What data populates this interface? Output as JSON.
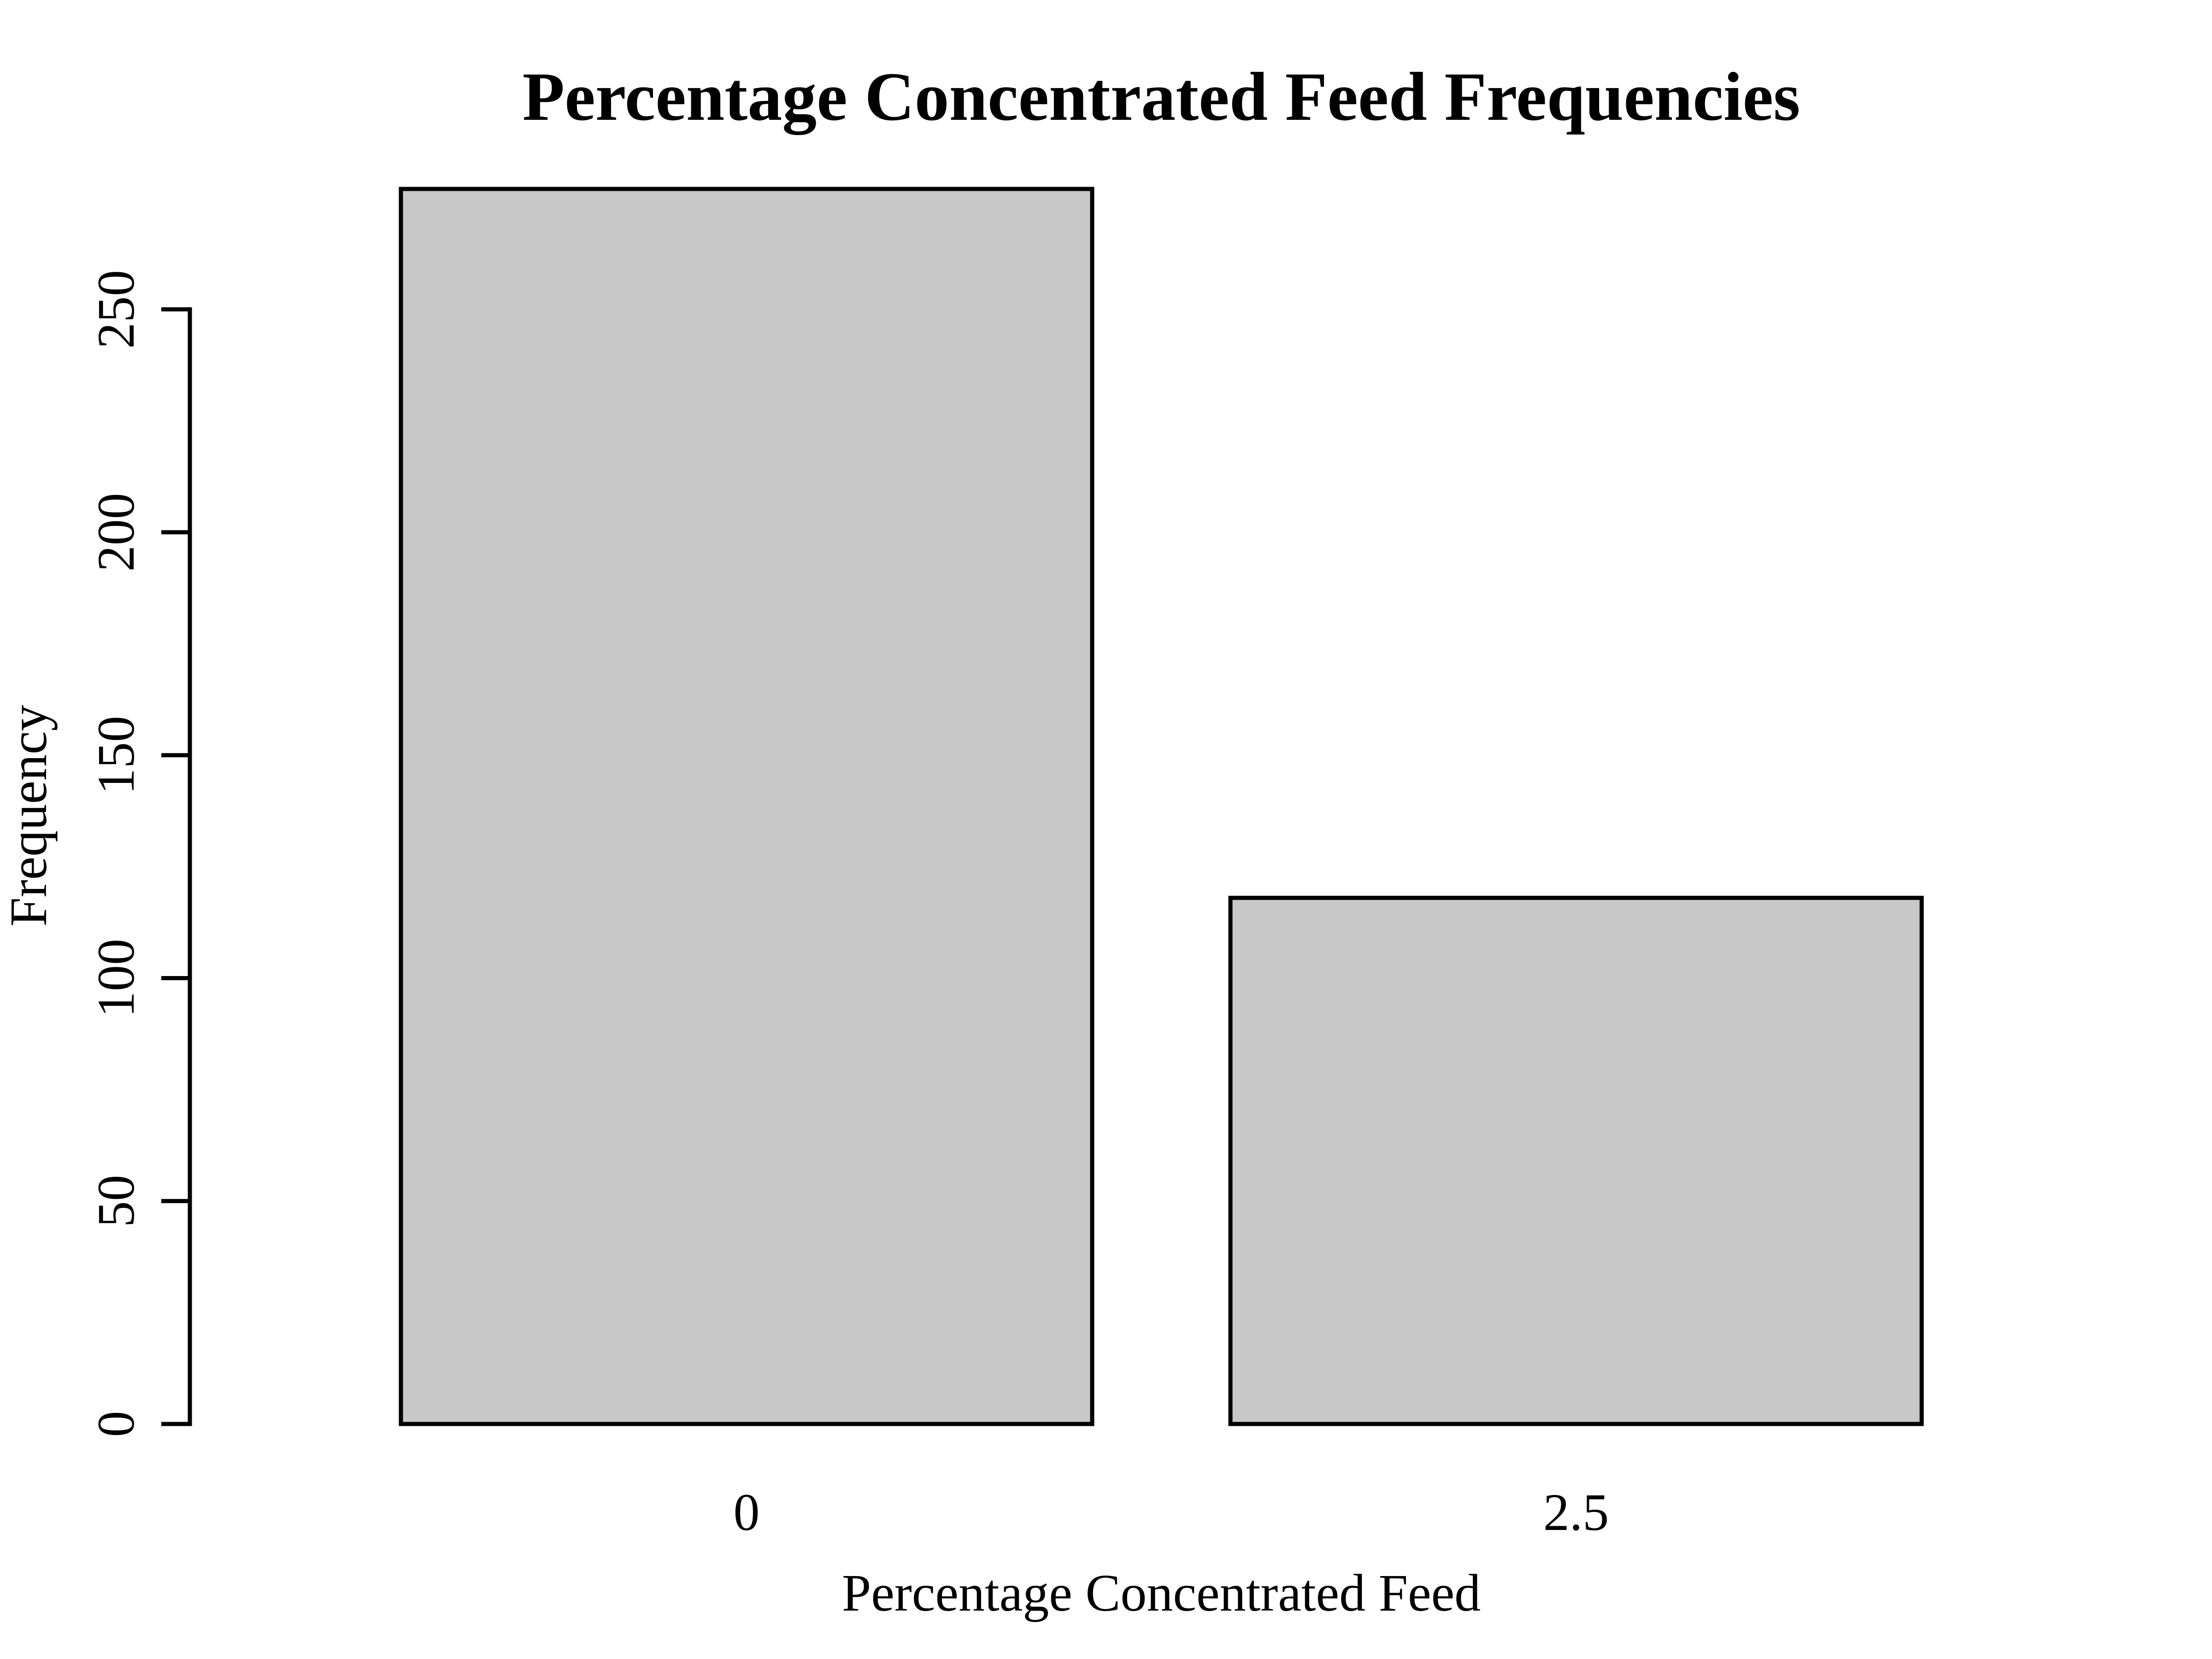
{
  "chart_data": {
    "type": "bar",
    "title": "Percentage Concentrated Feed Frequencies",
    "xlabel": "Percentage Concentrated Feed",
    "ylabel": "Frequency",
    "categories": [
      "0",
      "2.5"
    ],
    "values": [
      277,
      118
    ],
    "yticks": [
      0,
      50,
      100,
      150,
      200,
      250
    ],
    "ylim": [
      0,
      277
    ],
    "grid": false,
    "legend": "none",
    "bar_color": "#c8c8c8",
    "edge_color": "#000000"
  }
}
